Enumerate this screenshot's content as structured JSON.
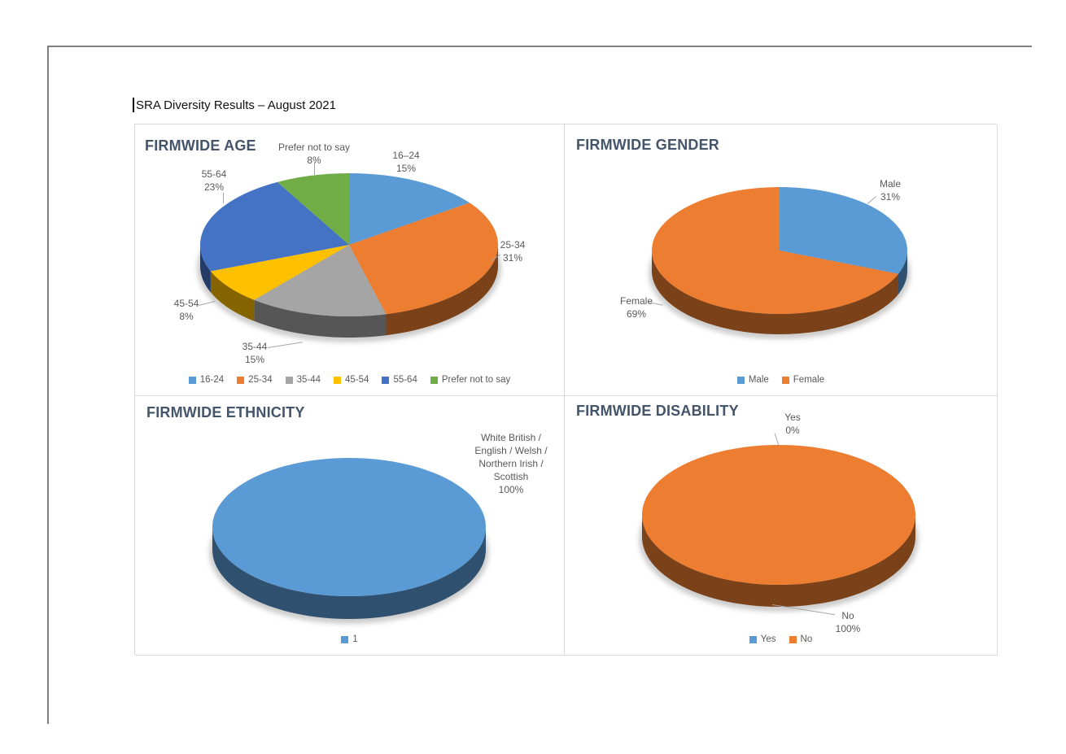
{
  "document": {
    "title": "SRA Diversity Results – August 2021"
  },
  "colors": {
    "chart_title": "#44546A",
    "label_text": "#595959",
    "leader_line": "#A6A6A6",
    "panel_border": "#D9D9D9",
    "page_border": "#7F7F7F"
  },
  "chart_data": [
    {
      "type": "pie",
      "title": "FIRMWIDE AGE",
      "legend_position": "bottom",
      "slices": [
        {
          "label": "16-24",
          "callout_label": "16–24",
          "legend_label": "16-24",
          "value": 15,
          "value_label": "15%",
          "color": "#5B9BD5"
        },
        {
          "label": "25-34",
          "callout_label": "25-34",
          "legend_label": "25-34",
          "value": 31,
          "value_label": "31%",
          "color": "#ED7D31"
        },
        {
          "label": "35-44",
          "callout_label": "35-44",
          "legend_label": "35-44",
          "value": 15,
          "value_label": "15%",
          "color": "#A5A5A5"
        },
        {
          "label": "45-54",
          "callout_label": "45-54",
          "legend_label": "45-54",
          "value": 8,
          "value_label": "8%",
          "color": "#FFC000"
        },
        {
          "label": "55-64",
          "callout_label": "55-64",
          "legend_label": "55-64",
          "value": 23,
          "value_label": "23%",
          "color": "#4472C4"
        },
        {
          "label": "Prefer not to say",
          "callout_label": "Prefer not to say",
          "legend_label": "Prefer not to say",
          "value": 8,
          "value_label": "8%",
          "color": "#70AD47"
        }
      ]
    },
    {
      "type": "pie",
      "title": "FIRMWIDE GENDER",
      "legend_position": "bottom",
      "slices": [
        {
          "label": "Male",
          "callout_label": "Male",
          "legend_label": "Male",
          "value": 31,
          "value_label": "31%",
          "color": "#5B9BD5"
        },
        {
          "label": "Female",
          "callout_label": "Female",
          "legend_label": "Female",
          "value": 69,
          "value_label": "69%",
          "color": "#ED7D31"
        }
      ]
    },
    {
      "type": "pie",
      "title": "FIRMWIDE ETHNICITY",
      "legend_position": "bottom",
      "slices": [
        {
          "label": "White British / English / Welsh / Northern Irish / Scottish",
          "label_lines": [
            "White British /",
            "English / Welsh /",
            "Northern Irish /",
            "Scottish"
          ],
          "legend_label": "1",
          "value": 100,
          "value_label": "100%",
          "color": "#5B9BD5"
        }
      ]
    },
    {
      "type": "pie",
      "title": "FIRMWIDE DISABILITY",
      "legend_position": "bottom",
      "slices": [
        {
          "label": "Yes",
          "callout_label": "Yes",
          "legend_label": "Yes",
          "value": 0,
          "value_label": "0%",
          "color": "#5B9BD5"
        },
        {
          "label": "No",
          "callout_label": "No",
          "legend_label": "No",
          "value": 100,
          "value_label": "100%",
          "color": "#ED7D31"
        }
      ]
    }
  ]
}
